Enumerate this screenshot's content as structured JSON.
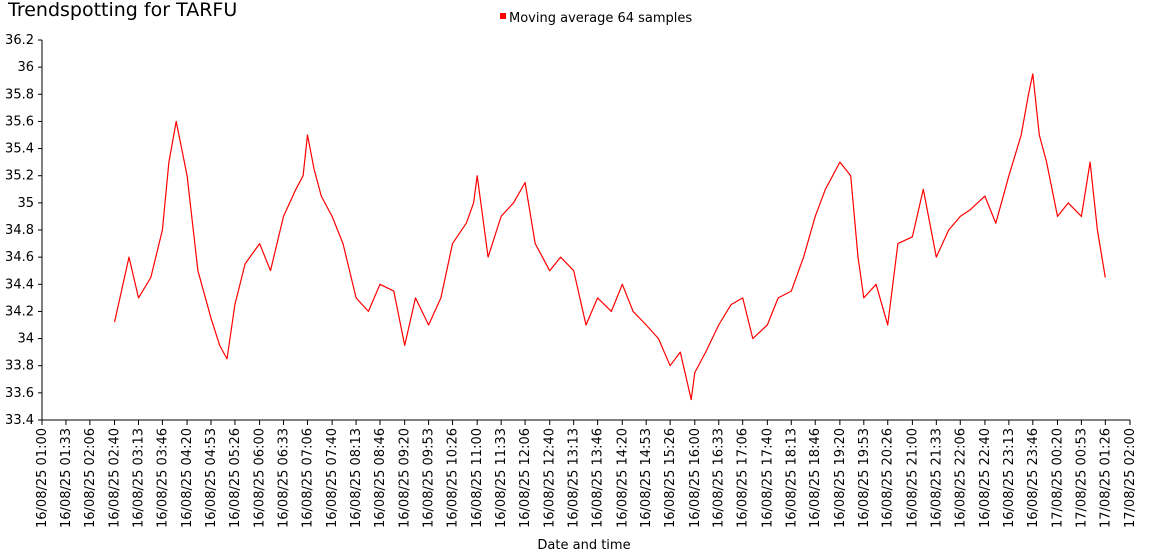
{
  "chart_data": {
    "type": "line",
    "title": "Trendspotting for TARFU",
    "xlabel": "Date and time",
    "ylabel": "",
    "ylim": [
      33.4,
      36.2
    ],
    "yticks": [
      "33.4",
      "33.6",
      "33.8",
      "34",
      "34.2",
      "34.4",
      "34.6",
      "34.8",
      "35",
      "35.2",
      "35.4",
      "35.6",
      "35.8",
      "36",
      "36.2"
    ],
    "xticks": [
      "16/08/25 01:00",
      "16/08/25 01:33",
      "16/08/25 02:06",
      "16/08/25 02:40",
      "16/08/25 03:13",
      "16/08/25 03:46",
      "16/08/25 04:20",
      "16/08/25 04:53",
      "16/08/25 05:26",
      "16/08/25 06:00",
      "16/08/25 06:33",
      "16/08/25 07:06",
      "16/08/25 07:40",
      "16/08/25 08:13",
      "16/08/25 08:46",
      "16/08/25 09:20",
      "16/08/25 09:53",
      "16/08/25 10:26",
      "16/08/25 11:00",
      "16/08/25 11:33",
      "16/08/25 12:06",
      "16/08/25 12:40",
      "16/08/25 13:13",
      "16/08/25 13:46",
      "16/08/25 14:20",
      "16/08/25 14:53",
      "16/08/25 15:26",
      "16/08/25 16:00",
      "16/08/25 16:33",
      "16/08/25 17:06",
      "16/08/25 17:40",
      "16/08/25 18:13",
      "16/08/25 18:46",
      "16/08/25 19:20",
      "16/08/25 19:53",
      "16/08/25 20:26",
      "16/08/25 21:00",
      "16/08/25 21:33",
      "16/08/25 22:06",
      "16/08/25 22:40",
      "16/08/25 23:13",
      "16/08/25 23:46",
      "17/08/25 00:20",
      "17/08/25 00:53",
      "17/08/25 01:26",
      "17/08/25 02:00"
    ],
    "legend_position": "top",
    "grid": false,
    "series": [
      {
        "name": "Moving average 64 samples",
        "color": "#ff0000",
        "x": [
          "16/08/25 02:40",
          "16/08/25 03:00",
          "16/08/25 03:13",
          "16/08/25 03:30",
          "16/08/25 03:46",
          "16/08/25 03:55",
          "16/08/25 04:05",
          "16/08/25 04:20",
          "16/08/25 04:35",
          "16/08/25 04:53",
          "16/08/25 05:05",
          "16/08/25 05:15",
          "16/08/25 05:26",
          "16/08/25 05:40",
          "16/08/25 06:00",
          "16/08/25 06:15",
          "16/08/25 06:33",
          "16/08/25 06:50",
          "16/08/25 07:00",
          "16/08/25 07:06",
          "16/08/25 07:15",
          "16/08/25 07:25",
          "16/08/25 07:40",
          "16/08/25 07:55",
          "16/08/25 08:13",
          "16/08/25 08:30",
          "16/08/25 08:46",
          "16/08/25 09:05",
          "16/08/25 09:20",
          "16/08/25 09:35",
          "16/08/25 09:53",
          "16/08/25 10:10",
          "16/08/25 10:26",
          "16/08/25 10:45",
          "16/08/25 10:55",
          "16/08/25 11:00",
          "16/08/25 11:15",
          "16/08/25 11:33",
          "16/08/25 11:50",
          "16/08/25 12:06",
          "16/08/25 12:20",
          "16/08/25 12:40",
          "16/08/25 12:55",
          "16/08/25 13:13",
          "16/08/25 13:30",
          "16/08/25 13:46",
          "16/08/25 14:05",
          "16/08/25 14:20",
          "16/08/25 14:35",
          "16/08/25 14:53",
          "16/08/25 15:10",
          "16/08/25 15:26",
          "16/08/25 15:40",
          "16/08/25 15:55",
          "16/08/25 16:00",
          "16/08/25 16:15",
          "16/08/25 16:33",
          "16/08/25 16:50",
          "16/08/25 17:06",
          "16/08/25 17:20",
          "16/08/25 17:40",
          "16/08/25 17:55",
          "16/08/25 18:13",
          "16/08/25 18:30",
          "16/08/25 18:46",
          "16/08/25 19:00",
          "16/08/25 19:20",
          "16/08/25 19:35",
          "16/08/25 19:45",
          "16/08/25 19:53",
          "16/08/25 20:10",
          "16/08/25 20:26",
          "16/08/25 20:40",
          "16/08/25 21:00",
          "16/08/25 21:15",
          "16/08/25 21:33",
          "16/08/25 21:50",
          "16/08/25 22:06",
          "16/08/25 22:20",
          "16/08/25 22:40",
          "16/08/25 22:55",
          "16/08/25 23:13",
          "16/08/25 23:30",
          "16/08/25 23:40",
          "16/08/25 23:46",
          "16/08/25 23:55",
          "17/08/25 00:05",
          "17/08/25 00:20",
          "17/08/25 00:35",
          "17/08/25 00:53",
          "17/08/25 01:05",
          "17/08/25 01:15",
          "17/08/25 01:26"
        ],
        "y": [
          34.12,
          34.6,
          34.3,
          34.45,
          34.8,
          35.3,
          35.6,
          35.2,
          34.5,
          34.15,
          33.95,
          33.85,
          34.25,
          34.55,
          34.7,
          34.5,
          34.9,
          35.1,
          35.2,
          35.5,
          35.25,
          35.05,
          34.9,
          34.7,
          34.3,
          34.2,
          34.4,
          34.35,
          33.95,
          34.3,
          34.1,
          34.3,
          34.7,
          34.85,
          35.0,
          35.2,
          34.6,
          34.9,
          35.0,
          35.15,
          34.7,
          34.5,
          34.6,
          34.5,
          34.1,
          34.3,
          34.2,
          34.4,
          34.2,
          34.1,
          34.0,
          33.8,
          33.9,
          33.55,
          33.75,
          33.9,
          34.1,
          34.25,
          34.3,
          34.0,
          34.1,
          34.3,
          34.35,
          34.6,
          34.9,
          35.1,
          35.3,
          35.2,
          34.6,
          34.3,
          34.4,
          34.1,
          34.7,
          34.75,
          35.1,
          34.6,
          34.8,
          34.9,
          34.95,
          35.05,
          34.85,
          35.2,
          35.5,
          35.8,
          35.95,
          35.5,
          35.3,
          34.9,
          35.0,
          34.9,
          35.3,
          34.8,
          34.45
        ]
      }
    ]
  }
}
